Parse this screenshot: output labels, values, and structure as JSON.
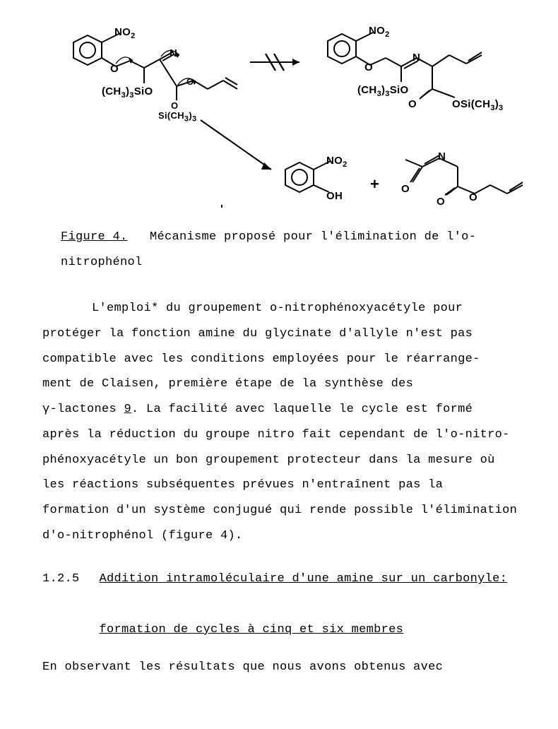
{
  "scheme": {
    "benzene_stroke": "#000000",
    "stroke": "#000000",
    "labels": {
      "no2": "NO",
      "no2_sub": "2",
      "ch3sio": "(CH",
      "ch3sio_sub1": "3",
      "ch3sio_mid": ")",
      "ch3sio_sub2": "3",
      "ch3sio_end": "SiO",
      "osich3": "OSi(CH",
      "osich3_sub1": "3",
      "osich3_mid": ")",
      "osich3_sub2": "3",
      "sich3": "Si(CH",
      "sich3_sub1": "3",
      "sich3_mid": ")",
      "sich3_sub2": "3",
      "oh": "OH",
      "o": "O",
      "n": "N",
      "plus": "+",
      "tick": "'"
    },
    "arrow": {
      "slashed": true
    }
  },
  "caption": {
    "figure_label": "Figure 4.",
    "text": "Mécanisme proposé pour l'élimination de l'o-nitrophénol"
  },
  "paragraph": {
    "lines": [
      "L'emploi* du groupement o-nitrophénoxyacétyle pour",
      "protéger la fonction amine du glycinate d'allyle n'est pas",
      "compatible avec les conditions employées pour le réarrange-",
      "ment de Claisen, première étape de la synthèse des",
      "γ-lactones 9.  La facilité avec laquelle le cycle est formé",
      "après la réduction du groupe nitro fait cependant de l'o-nitro-",
      "phénoxyacétyle un bon groupement protecteur dans la mesure où",
      "les réactions subséquentes prévues n'entraînent pas la",
      "formation d'un système conjugué qui rende possible l'élimination",
      "d'o-nitrophénol (figure 4)."
    ],
    "underline_token": "9"
  },
  "section": {
    "number": "1.2.5",
    "title_line1": "Addition intramoléculaire d'une amine sur un carbonyle:",
    "title_line2": "formation de cycles à cinq et six membres"
  },
  "last_line": "En observant les résultats que nous avons obtenus avec"
}
